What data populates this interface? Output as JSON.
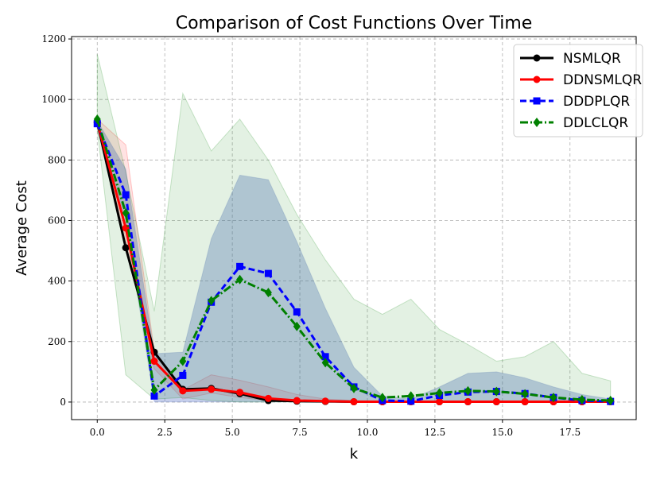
{
  "chart_data": {
    "type": "line",
    "title": "Comparison of Cost Functions Over Time",
    "xlabel": "k",
    "ylabel": "Average Cost",
    "xlim": [
      -0.95,
      19.95
    ],
    "ylim": [
      -58,
      1208
    ],
    "xticks": [
      0.0,
      2.5,
      5.0,
      7.5,
      10.0,
      12.5,
      15.0,
      17.5
    ],
    "xtick_labels": [
      "0.0",
      "2.5",
      "5.0",
      "7.5",
      "10.0",
      "12.5",
      "15.0",
      "17.5"
    ],
    "yticks": [
      0,
      200,
      400,
      600,
      800,
      1000,
      1200
    ],
    "ytick_labels": [
      "0",
      "200",
      "400",
      "600",
      "800",
      "1000",
      "1200"
    ],
    "grid": true,
    "legend_position": "top-right",
    "x": [
      0,
      1.056,
      2.111,
      3.167,
      4.222,
      5.278,
      6.333,
      7.389,
      8.444,
      9.5,
      10.556,
      11.611,
      12.667,
      13.722,
      14.778,
      15.833,
      16.889,
      17.944,
      19
    ],
    "series": [
      {
        "name": "NSMLQR",
        "color": "#000000",
        "marker": "circle",
        "dash": "solid",
        "values": [
          925,
          510,
          165,
          42,
          45,
          28,
          5,
          3,
          2,
          1,
          1,
          1,
          1,
          1,
          1,
          1,
          1,
          1,
          1
        ],
        "band_upper": null,
        "band_lower": null
      },
      {
        "name": "DDNSMLQR",
        "color": "#ff0000",
        "marker": "circle",
        "dash": "solid",
        "values": [
          925,
          575,
          135,
          37,
          42,
          32,
          12,
          5,
          3,
          1,
          1,
          1,
          1,
          1,
          1,
          1,
          1,
          1,
          1
        ],
        "band_upper": [
          935,
          850,
          170,
          40,
          90,
          72,
          50,
          25,
          10,
          5,
          3,
          2,
          2,
          2,
          2,
          2,
          2,
          2,
          2
        ],
        "band_lower": [
          915,
          540,
          110,
          10,
          30,
          15,
          5,
          0,
          0,
          0,
          0,
          0,
          0,
          0,
          0,
          0,
          0,
          0,
          0
        ]
      },
      {
        "name": "DDDPLQR",
        "color": "#0000ff",
        "marker": "square",
        "dash": "dashed",
        "values": [
          920,
          685,
          20,
          88,
          330,
          448,
          425,
          298,
          150,
          50,
          5,
          3,
          22,
          33,
          35,
          28,
          15,
          5,
          2
        ],
        "band_upper": [
          930,
          770,
          160,
          165,
          540,
          750,
          735,
          530,
          310,
          115,
          20,
          10,
          50,
          95,
          100,
          80,
          50,
          25,
          10
        ],
        "band_lower": [
          915,
          600,
          0,
          0,
          0,
          0,
          0,
          0,
          0,
          0,
          0,
          0,
          0,
          0,
          0,
          0,
          0,
          0,
          0
        ]
      },
      {
        "name": "DDLCLQR",
        "color": "#008000",
        "marker": "diamond",
        "dash": "dashdot",
        "values": [
          935,
          625,
          40,
          135,
          335,
          405,
          362,
          250,
          130,
          45,
          15,
          20,
          30,
          37,
          35,
          27,
          15,
          8,
          5
        ],
        "band_upper": [
          1150,
          760,
          300,
          1020,
          830,
          935,
          800,
          620,
          470,
          340,
          290,
          340,
          240,
          190,
          135,
          150,
          200,
          95,
          70
        ],
        "band_lower": [
          900,
          90,
          10,
          15,
          5,
          0,
          0,
          0,
          0,
          0,
          0,
          0,
          0,
          0,
          0,
          0,
          0,
          0,
          0
        ]
      }
    ]
  }
}
